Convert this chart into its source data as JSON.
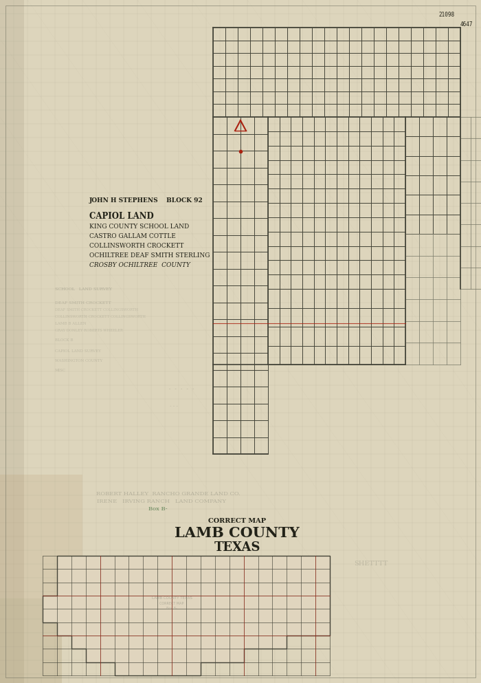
{
  "bg_color": "#cdc5b0",
  "paper_color": "#ddd5bc",
  "grid_color": "#444438",
  "grid_light": "#777766",
  "red_color": "#aa2211",
  "green_color": "#336633",
  "faint_color": "#888878",
  "text_dark": "#222218",
  "text_medium": "#444438",
  "title_correct_map": "CORRECT MAP",
  "title_lamb_county": "LAMB COUNTY",
  "title_texas": "TEXAS",
  "block_header": "JOHN H STEPHENS    BLOCK 92",
  "legend_lines": [
    "CAPIOL LAND",
    "KING COUNTY SCHOOL LAND",
    "CASTRO GALLAM COTTLE",
    "COLLINSWORTH CROCKETT",
    "OCHILTREE DEAF SMITH STERLING",
    "CROSBY OCHILTREE  COUNTY"
  ],
  "stamp_top": "21098",
  "stamp_num": "4647"
}
